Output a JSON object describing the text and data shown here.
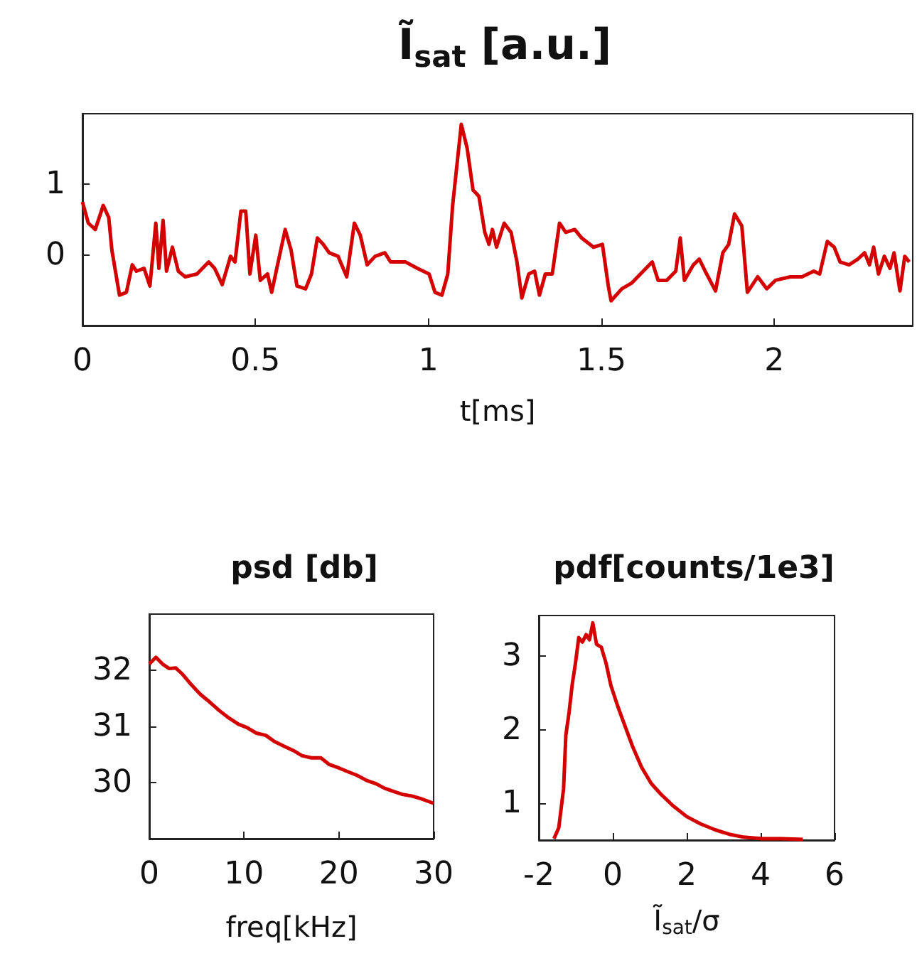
{
  "chart_data": [
    {
      "type": "line",
      "title": "Ĩ$_{sat}$ [a.u.]",
      "xlabel": "t[ms]",
      "color": "#d40000",
      "xlim": [
        0,
        2.4
      ],
      "ylim": [
        -1,
        2
      ],
      "xticks": [
        0,
        0.5,
        1,
        1.5,
        2
      ],
      "yticks": [
        0,
        1
      ],
      "x": [
        0,
        0.017,
        0.037,
        0.06,
        0.076,
        0.085,
        0.107,
        0.127,
        0.144,
        0.156,
        0.178,
        0.195,
        0.212,
        0.221,
        0.233,
        0.243,
        0.26,
        0.277,
        0.297,
        0.331,
        0.365,
        0.382,
        0.404,
        0.428,
        0.441,
        0.458,
        0.472,
        0.484,
        0.501,
        0.514,
        0.535,
        0.547,
        0.564,
        0.586,
        0.603,
        0.62,
        0.645,
        0.662,
        0.679,
        0.696,
        0.713,
        0.739,
        0.764,
        0.786,
        0.803,
        0.823,
        0.846,
        0.874,
        0.891,
        0.934,
        0.968,
        1.002,
        1.019,
        1.039,
        1.056,
        1.07,
        1.095,
        1.112,
        1.129,
        1.146,
        1.163,
        1.175,
        1.185,
        1.197,
        1.219,
        1.239,
        1.256,
        1.27,
        1.29,
        1.307,
        1.321,
        1.338,
        1.358,
        1.379,
        1.397,
        1.423,
        1.443,
        1.477,
        1.503,
        1.52,
        1.528,
        1.559,
        1.587,
        1.621,
        1.647,
        1.664,
        1.689,
        1.715,
        1.728,
        1.74,
        1.766,
        1.783,
        1.8,
        1.83,
        1.851,
        1.868,
        1.885,
        1.906,
        1.922,
        1.952,
        1.978,
        2.003,
        2.046,
        2.08,
        2.114,
        2.131,
        2.153,
        2.173,
        2.19,
        2.216,
        2.241,
        2.261,
        2.275,
        2.287,
        2.301,
        2.318,
        2.334,
        2.346,
        2.363,
        2.377,
        2.39
      ],
      "values": [
        0.75,
        0.45,
        0.36,
        0.7,
        0.53,
        0.07,
        -0.57,
        -0.53,
        -0.14,
        -0.23,
        -0.19,
        -0.44,
        0.45,
        -0.19,
        0.49,
        -0.23,
        0.11,
        -0.23,
        -0.31,
        -0.27,
        -0.1,
        -0.19,
        -0.42,
        -0.02,
        -0.1,
        0.62,
        0.62,
        -0.27,
        0.28,
        -0.36,
        -0.27,
        -0.53,
        -0.14,
        0.36,
        0.07,
        -0.44,
        -0.48,
        -0.27,
        0.24,
        0.15,
        0.03,
        -0.02,
        -0.31,
        0.45,
        0.28,
        -0.14,
        -0.02,
        0.03,
        -0.1,
        -0.1,
        -0.19,
        -0.27,
        -0.53,
        -0.57,
        -0.27,
        0.7,
        1.85,
        1.51,
        0.92,
        0.83,
        0.32,
        0.15,
        0.36,
        0.11,
        0.45,
        0.32,
        -0.1,
        -0.61,
        -0.27,
        -0.23,
        -0.57,
        -0.27,
        -0.27,
        0.45,
        0.32,
        0.36,
        0.24,
        0.11,
        0.15,
        -0.44,
        -0.65,
        -0.48,
        -0.4,
        -0.23,
        -0.1,
        -0.36,
        -0.36,
        -0.23,
        0.24,
        -0.36,
        -0.14,
        -0.06,
        -0.23,
        -0.51,
        0.03,
        0.15,
        0.58,
        0.41,
        -0.53,
        -0.31,
        -0.48,
        -0.36,
        -0.31,
        -0.31,
        -0.23,
        -0.27,
        0.19,
        0.11,
        -0.1,
        -0.14,
        -0.06,
        0.03,
        -0.14,
        0.11,
        -0.27,
        -0.02,
        -0.19,
        0.03,
        -0.51,
        -0.02,
        -0.1
      ]
    },
    {
      "type": "line",
      "title": "psd [db]",
      "xlabel": "freq[kHz]",
      "color": "#d40000",
      "xlim": [
        0,
        30
      ],
      "ylim": [
        29,
        33
      ],
      "xticks": [
        0,
        10,
        20,
        30
      ],
      "yticks": [
        30,
        31,
        32
      ],
      "x": [
        0,
        0.7,
        1.4,
        2.1,
        2.8,
        3.5,
        4.5,
        5.4,
        6.4,
        7.4,
        8.4,
        9.4,
        10.3,
        11.3,
        12.3,
        13.2,
        14.2,
        15.2,
        16.1,
        17.1,
        18.1,
        19,
        20,
        21,
        21.9,
        22.9,
        23.9,
        24.8,
        25.8,
        26.7,
        27.7,
        28.7,
        30
      ],
      "values": [
        32.11,
        32.23,
        32.11,
        32.03,
        32.04,
        31.93,
        31.73,
        31.57,
        31.43,
        31.28,
        31.15,
        31.04,
        30.98,
        30.88,
        30.84,
        30.73,
        30.65,
        30.57,
        30.48,
        30.44,
        30.44,
        30.32,
        30.26,
        30.19,
        30.13,
        30.04,
        29.98,
        29.9,
        29.84,
        29.79,
        29.76,
        29.71,
        29.63
      ]
    },
    {
      "type": "line",
      "title": "pdf[counts/1e3]",
      "xlabel": "Ĩ$_{sat}$/σ",
      "color": "#d40000",
      "xlim": [
        -2,
        6
      ],
      "ylim": [
        0.5,
        3.55
      ],
      "xticks": [
        -2,
        0,
        2,
        4,
        6
      ],
      "yticks": [
        1,
        2,
        3
      ],
      "x": [
        -1.59,
        -1.46,
        -1.33,
        -1.27,
        -1.18,
        -1.1,
        -1.01,
        -0.92,
        -0.82,
        -0.72,
        -0.63,
        -0.54,
        -0.44,
        -0.31,
        -0.18,
        -0.05,
        0.14,
        0.33,
        0.53,
        0.78,
        1.04,
        1.29,
        1.62,
        2,
        2.38,
        2.77,
        3.15,
        3.54,
        4.05,
        4.56,
        5.14
      ],
      "values": [
        0.52,
        0.67,
        1.2,
        1.92,
        2.24,
        2.6,
        2.9,
        3.25,
        3.19,
        3.29,
        3.22,
        3.45,
        3.16,
        3.12,
        2.9,
        2.6,
        2.31,
        2.05,
        1.78,
        1.49,
        1.27,
        1.13,
        0.97,
        0.82,
        0.72,
        0.64,
        0.58,
        0.54,
        0.52,
        0.52,
        0.51
      ]
    }
  ]
}
